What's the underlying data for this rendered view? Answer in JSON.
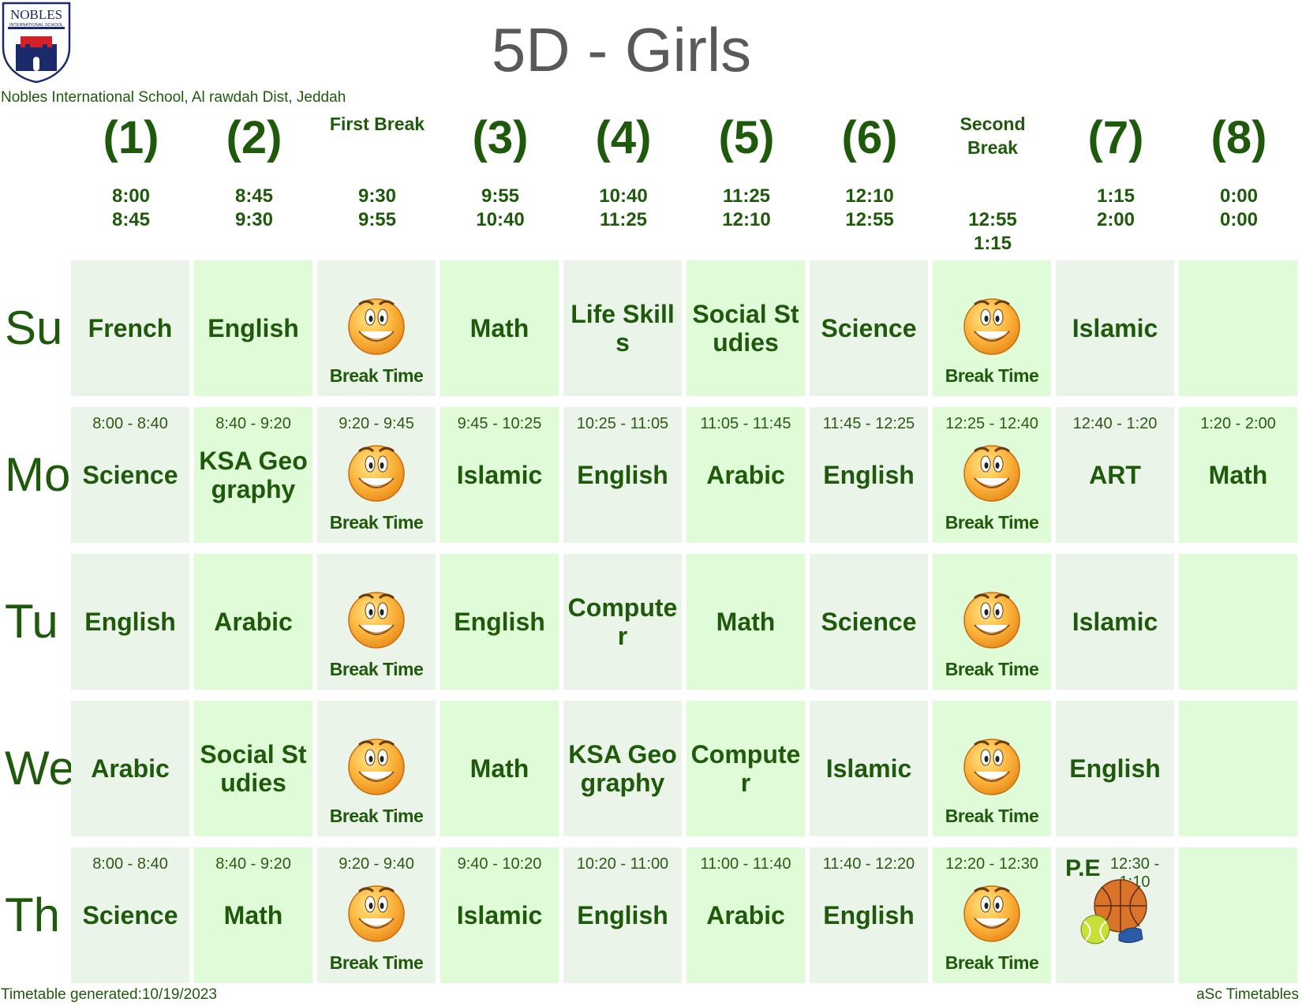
{
  "header": {
    "logo_text_top": "NOBLES",
    "logo_text_sub": "INTERNATIONAL SCHOOL",
    "title": "5D - Girls",
    "school": "Nobles International School, Al rawdah Dist, Jeddah"
  },
  "columns": [
    {
      "num": "(1)",
      "label": "",
      "start": "8:00",
      "end": "8:45"
    },
    {
      "num": "(2)",
      "label": "",
      "start": "8:45",
      "end": "9:30"
    },
    {
      "num": "",
      "label": "First Break",
      "start": "9:30",
      "end": "9:55"
    },
    {
      "num": "(3)",
      "label": "",
      "start": "9:55",
      "end": "10:40"
    },
    {
      "num": "(4)",
      "label": "",
      "start": "10:40",
      "end": "11:25"
    },
    {
      "num": "(5)",
      "label": "",
      "start": "11:25",
      "end": "12:10"
    },
    {
      "num": "(6)",
      "label": "",
      "start": "12:10",
      "end": "12:55"
    },
    {
      "num": "",
      "label": "Second Break",
      "start": "12:55",
      "end": "1:15"
    },
    {
      "num": "(7)",
      "label": "",
      "start": "1:15",
      "end": "2:00"
    },
    {
      "num": "(8)",
      "label": "",
      "start": "0:00",
      "end": "0:00"
    }
  ],
  "days": [
    {
      "name": "Su",
      "cells": [
        {
          "subject": "French"
        },
        {
          "subject": "English"
        },
        {
          "break": "Break Time"
        },
        {
          "subject": "Math"
        },
        {
          "subject": "Life Skills"
        },
        {
          "subject": "Social Studies"
        },
        {
          "subject": "Science"
        },
        {
          "break": "Break Time"
        },
        {
          "subject": "Islamic"
        },
        {
          "subject": ""
        }
      ]
    },
    {
      "name": "Mo",
      "cells": [
        {
          "subject": "Science",
          "time": "8:00 - 8:40"
        },
        {
          "subject": "KSA Geography",
          "time": "8:40 - 9:20"
        },
        {
          "break": "Break Time",
          "time": "9:20 - 9:45"
        },
        {
          "subject": "Islamic",
          "time": "9:45 - 10:25"
        },
        {
          "subject": "English",
          "time": "10:25 - 11:05"
        },
        {
          "subject": "Arabic",
          "time": "11:05 - 11:45"
        },
        {
          "subject": "English",
          "time": "11:45 - 12:25"
        },
        {
          "break": "Break Time",
          "time": "12:25 - 12:40"
        },
        {
          "subject": "ART",
          "time": "12:40 - 1:20"
        },
        {
          "subject": "Math",
          "time": "1:20 - 2:00"
        }
      ]
    },
    {
      "name": "Tu",
      "cells": [
        {
          "subject": "English"
        },
        {
          "subject": "Arabic"
        },
        {
          "break": "Break Time"
        },
        {
          "subject": "English"
        },
        {
          "subject": "Computer"
        },
        {
          "subject": "Math"
        },
        {
          "subject": "Science"
        },
        {
          "break": "Break Time"
        },
        {
          "subject": "Islamic"
        },
        {
          "subject": ""
        }
      ]
    },
    {
      "name": "We",
      "cells": [
        {
          "subject": "Arabic"
        },
        {
          "subject": "Social Studies"
        },
        {
          "break": "Break Time"
        },
        {
          "subject": "Math"
        },
        {
          "subject": "KSA Geography"
        },
        {
          "subject": "Computer"
        },
        {
          "subject": "Islamic"
        },
        {
          "break": "Break Time"
        },
        {
          "subject": "English"
        },
        {
          "subject": ""
        }
      ]
    },
    {
      "name": "Th",
      "cells": [
        {
          "subject": "Science",
          "time": "8:00 - 8:40"
        },
        {
          "subject": "Math",
          "time": "8:40 - 9:20"
        },
        {
          "break": "Break Time",
          "time": "9:20 - 9:40"
        },
        {
          "subject": "Islamic",
          "time": "9:40 - 10:20"
        },
        {
          "subject": "English",
          "time": "10:20 - 11:00"
        },
        {
          "subject": "Arabic",
          "time": "11:00 - 11:40"
        },
        {
          "subject": "English",
          "time": "11:40 - 12:20"
        },
        {
          "break": "Break Time",
          "time": "12:20 - 12:30"
        },
        {
          "pe": "P.E",
          "time": "12:30 - 1:10"
        },
        {
          "subject": ""
        }
      ]
    }
  ],
  "footer": {
    "generated": "Timetable generated:10/19/2023",
    "brand": "aSc Timetables"
  }
}
